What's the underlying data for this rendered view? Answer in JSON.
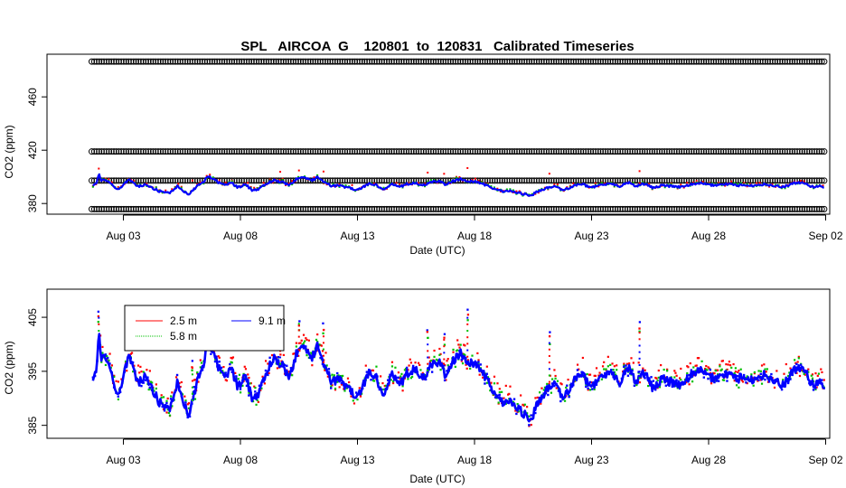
{
  "chart_data": [
    {
      "type": "scatter",
      "title": "SPL   AIRCOA  G    120801  to  120831   Calibrated Timeseries",
      "xlabel": "Date (UTC)",
      "ylabel": "CO2 (ppm)",
      "x_ticks": [
        "Aug 03",
        "Aug 08",
        "Aug 13",
        "Aug 18",
        "Aug 23",
        "Aug 28",
        "Sep 02"
      ],
      "y_ticks": [
        380,
        420,
        460
      ],
      "y_tick_labels": [
        "380",
        "420",
        "460"
      ],
      "xlim_days": [
        0.5,
        33.5
      ],
      "ylim": [
        372,
        492
      ],
      "calibration_levels_ppm": [
        375.8,
        397.2,
        419.0,
        486.5
      ],
      "series": [
        {
          "color": "#ff0000",
          "kind": "ambient measurements"
        },
        {
          "color": "#00c000",
          "kind": "ambient measurements"
        },
        {
          "color": "#0000ff",
          "kind": "ambient measurements"
        },
        {
          "color": "#000000",
          "kind": "calibration standards (open circles)"
        }
      ]
    },
    {
      "type": "scatter",
      "title": "",
      "xlabel": "Date (UTC)",
      "ylabel": "CO2 (ppm)",
      "x_ticks": [
        "Aug 03",
        "Aug 08",
        "Aug 13",
        "Aug 18",
        "Aug 23",
        "Aug 28",
        "Sep 02"
      ],
      "y_ticks": [
        385,
        395,
        405
      ],
      "y_tick_labels": [
        "385",
        "395",
        "405"
      ],
      "xlim_days": [
        0.5,
        33.5
      ],
      "ylim": [
        382.6,
        410.2
      ],
      "legend_position": "top-left",
      "series": [
        {
          "name": "2.5 m",
          "color": "#ff0000"
        },
        {
          "name": "5.8 m",
          "color": "#00c000"
        },
        {
          "name": "9.1 m",
          "color": "#0000ff"
        }
      ],
      "anchor_points": {
        "x_days": [
          1.7,
          1.85,
          1.95,
          2.05,
          2.2,
          2.4,
          2.6,
          2.8,
          3.0,
          3.2,
          3.4,
          3.6,
          3.9,
          4.2,
          4.5,
          4.8,
          5.0,
          5.3,
          5.6,
          5.8,
          6.0,
          6.2,
          6.4,
          6.6,
          6.8,
          7.0,
          7.3,
          7.6,
          7.9,
          8.2,
          8.5,
          8.8,
          9.1,
          9.4,
          9.8,
          10.1,
          10.4,
          10.7,
          11.0,
          11.3,
          11.6,
          11.9,
          12.2,
          12.6,
          12.9,
          13.2,
          13.5,
          13.8,
          14.1,
          14.5,
          14.8,
          15.1,
          15.5,
          15.8,
          16.1,
          16.5,
          16.8,
          17.1,
          17.4,
          17.7,
          18.0,
          18.4,
          18.8,
          19.2,
          19.6,
          20.0,
          20.4,
          20.8,
          21.1,
          21.4,
          21.8,
          22.2,
          22.6,
          23.0,
          23.4,
          23.8,
          24.2,
          24.6,
          24.9,
          25.2,
          25.6,
          26.0,
          26.4,
          26.8,
          27.2,
          27.6,
          28.0,
          28.4,
          28.8,
          29.2,
          29.6,
          30.0,
          30.4,
          30.8,
          31.2,
          31.6,
          32.0,
          32.4,
          32.7,
          32.9
        ],
        "co2_ppm": [
          393.0,
          395.5,
          402.5,
          397.0,
          398.0,
          396.0,
          392.5,
          390.5,
          394.0,
          397.5,
          396.5,
          392.5,
          394.0,
          392.0,
          389.5,
          388.0,
          388.0,
          393.0,
          388.5,
          387.0,
          390.5,
          394.0,
          396.0,
          400.0,
          399.0,
          396.5,
          393.5,
          395.5,
          392.0,
          394.5,
          390.0,
          391.0,
          394.5,
          397.5,
          396.0,
          393.5,
          398.5,
          400.0,
          397.0,
          400.0,
          396.0,
          393.0,
          393.5,
          392.0,
          390.5,
          392.0,
          394.5,
          394.0,
          390.0,
          394.5,
          392.5,
          394.5,
          395.5,
          393.5,
          396.0,
          396.5,
          394.0,
          397.0,
          398.5,
          396.5,
          396.5,
          394.5,
          391.0,
          389.0,
          389.5,
          387.5,
          386.0,
          390.0,
          391.5,
          392.5,
          390.0,
          393.0,
          394.5,
          392.0,
          393.5,
          395.0,
          393.0,
          396.0,
          392.5,
          395.0,
          392.0,
          393.5,
          393.0,
          392.5,
          394.0,
          395.5,
          394.0,
          393.5,
          394.5,
          393.5,
          394.0,
          393.0,
          394.5,
          393.0,
          392.5,
          395.0,
          396.0,
          392.5,
          393.0,
          392.0
        ]
      },
      "spikes": [
        {
          "x_days": 1.95,
          "co2_ppm": 406.2
        },
        {
          "x_days": 5.95,
          "co2_ppm": 397.2
        },
        {
          "x_days": 9.7,
          "co2_ppm": 403.8
        },
        {
          "x_days": 10.5,
          "co2_ppm": 404.8
        },
        {
          "x_days": 11.55,
          "co2_ppm": 404.0
        },
        {
          "x_days": 16.0,
          "co2_ppm": 403.2
        },
        {
          "x_days": 16.7,
          "co2_ppm": 402.3
        },
        {
          "x_days": 17.7,
          "co2_ppm": 406.6
        },
        {
          "x_days": 21.2,
          "co2_ppm": 402.4
        },
        {
          "x_days": 25.05,
          "co2_ppm": 404.3
        }
      ]
    }
  ]
}
